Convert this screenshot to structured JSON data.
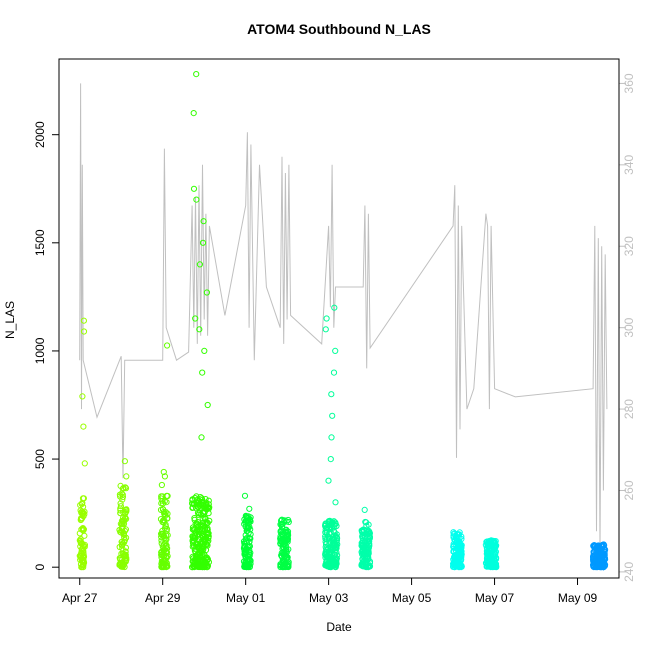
{
  "chart_data": {
    "type": "scatter",
    "title": "ATOM4 Southbound N_LAS",
    "xlabel": "Date",
    "ylabel": "N_LAS",
    "x_range": [
      "2015-04-26T12:00",
      "2015-05-10T00:00"
    ],
    "ylim": [
      -50,
      2350
    ],
    "y2lim": [
      238.5,
      366
    ],
    "x_ticks": [
      "Apr 27",
      "Apr 29",
      "May 01",
      "May 03",
      "May 05",
      "May 07",
      "May 09"
    ],
    "x_tick_dates": [
      "2015-04-27",
      "2015-04-29",
      "2015-05-01",
      "2015-05-03",
      "2015-05-05",
      "2015-05-07",
      "2015-05-09"
    ],
    "y_ticks": [
      0,
      500,
      1000,
      1500,
      2000
    ],
    "y2_ticks": [
      240,
      260,
      280,
      300,
      320,
      340,
      360
    ],
    "grid": false,
    "point_clusters": [
      {
        "start": "2015-04-27T00:00",
        "end": "2015-04-27T03:00",
        "base_max": 320,
        "outliers": [
          480,
          650,
          790,
          1090,
          1140
        ],
        "color": "#99ff00"
      },
      {
        "start": "2015-04-27T23:00",
        "end": "2015-04-28T03:00",
        "base_max": 380,
        "outliers": [
          420,
          490
        ],
        "color": "#88ff00"
      },
      {
        "start": "2015-04-28T23:00",
        "end": "2015-04-29T03:00",
        "base_max": 350,
        "outliers": [
          380,
          420,
          440,
          1025
        ],
        "color": "#66ff00"
      },
      {
        "start": "2015-04-29T17:00",
        "end": "2015-04-30T03:00",
        "base_max": 330,
        "outliers": [
          600,
          750,
          900,
          1000,
          1100,
          1150,
          1270,
          1400,
          1500,
          1600,
          1700,
          1750,
          2100,
          2280
        ],
        "color": "#33ff00"
      },
      {
        "start": "2015-04-30T23:00",
        "end": "2015-05-01T03:00",
        "base_max": 250,
        "outliers": [
          270,
          330
        ],
        "color": "#00ff33"
      },
      {
        "start": "2015-05-01T20:00",
        "end": "2015-05-02T01:00",
        "base_max": 220,
        "outliers": [],
        "color": "#00ff44"
      },
      {
        "start": "2015-05-02T22:00",
        "end": "2015-05-03T05:00",
        "base_max": 220,
        "outliers": [
          300,
          400,
          500,
          600,
          700,
          800,
          900,
          1000,
          1100,
          1150,
          1200
        ],
        "color": "#00ff99"
      },
      {
        "start": "2015-05-03T19:00",
        "end": "2015-05-04T00:00",
        "base_max": 210,
        "outliers": [
          265
        ],
        "color": "#00ffaa"
      },
      {
        "start": "2015-05-06T00:00",
        "end": "2015-05-06T05:00",
        "base_max": 165,
        "outliers": [],
        "color": "#00ffee"
      },
      {
        "start": "2015-05-06T19:00",
        "end": "2015-05-07T01:00",
        "base_max": 125,
        "outliers": [],
        "color": "#00ffdd"
      },
      {
        "start": "2015-05-09T09:00",
        "end": "2015-05-09T16:00",
        "base_max": 105,
        "outliers": [],
        "color": "#0099ff"
      }
    ],
    "secondary_series": {
      "color": "#c0c0c0",
      "path": [
        [
          "2015-04-27T00:00",
          292
        ],
        [
          "2015-04-27T00:30",
          360
        ],
        [
          "2015-04-27T01:00",
          280
        ],
        [
          "2015-04-27T01:30",
          340
        ],
        [
          "2015-04-27T02:00",
          292
        ],
        [
          "2015-04-27T10:00",
          278
        ],
        [
          "2015-04-28T00:00",
          293
        ],
        [
          "2015-04-28T01:00",
          263
        ],
        [
          "2015-04-28T02:00",
          292
        ],
        [
          "2015-04-28T10:00",
          292
        ],
        [
          "2015-04-29T00:00",
          292
        ],
        [
          "2015-04-29T01:00",
          344
        ],
        [
          "2015-04-29T02:00",
          300
        ],
        [
          "2015-04-29T08:00",
          292
        ],
        [
          "2015-04-29T15:00",
          294
        ],
        [
          "2015-04-29T17:00",
          330
        ],
        [
          "2015-04-29T18:00",
          300
        ],
        [
          "2015-04-29T19:00",
          332
        ],
        [
          "2015-04-29T20:00",
          296
        ],
        [
          "2015-04-29T21:00",
          335
        ],
        [
          "2015-04-29T22:00",
          298
        ],
        [
          "2015-04-29T23:00",
          340
        ],
        [
          "2015-04-30T00:00",
          302
        ],
        [
          "2015-04-30T01:00",
          328
        ],
        [
          "2015-04-30T02:00",
          298
        ],
        [
          "2015-04-30T03:00",
          325
        ],
        [
          "2015-04-30T12:00",
          303
        ],
        [
          "2015-05-01T00:00",
          330
        ],
        [
          "2015-05-01T01:00",
          348
        ],
        [
          "2015-05-01T02:00",
          300
        ],
        [
          "2015-05-01T03:00",
          345
        ],
        [
          "2015-05-01T05:00",
          292
        ],
        [
          "2015-05-01T08:00",
          340
        ],
        [
          "2015-05-01T12:00",
          310
        ],
        [
          "2015-05-01T20:00",
          300
        ],
        [
          "2015-05-01T21:00",
          342
        ],
        [
          "2015-05-01T22:00",
          296
        ],
        [
          "2015-05-01T23:00",
          338
        ],
        [
          "2015-05-02T00:00",
          302
        ],
        [
          "2015-05-02T01:00",
          340
        ],
        [
          "2015-05-02T02:00",
          303
        ],
        [
          "2015-05-02T20:00",
          296
        ],
        [
          "2015-05-03T00:00",
          325
        ],
        [
          "2015-05-03T01:00",
          305
        ],
        [
          "2015-05-03T02:00",
          340
        ],
        [
          "2015-05-03T03:00",
          300
        ],
        [
          "2015-05-03T04:00",
          310
        ],
        [
          "2015-05-03T20:00",
          310
        ],
        [
          "2015-05-03T21:00",
          330
        ],
        [
          "2015-05-03T22:00",
          290
        ],
        [
          "2015-05-03T23:00",
          328
        ],
        [
          "2015-05-04T00:00",
          295
        ],
        [
          "2015-05-06T00:00",
          325
        ],
        [
          "2015-05-06T01:00",
          335
        ],
        [
          "2015-05-06T02:00",
          268
        ],
        [
          "2015-05-06T03:00",
          330
        ],
        [
          "2015-05-06T04:00",
          275
        ],
        [
          "2015-05-06T05:00",
          325
        ],
        [
          "2015-05-06T08:00",
          280
        ],
        [
          "2015-05-06T12:00",
          285
        ],
        [
          "2015-05-06T19:00",
          328
        ],
        [
          "2015-05-06T20:00",
          325
        ],
        [
          "2015-05-06T21:00",
          280
        ],
        [
          "2015-05-06T22:00",
          325
        ],
        [
          "2015-05-07T00:00",
          285
        ],
        [
          "2015-05-07T12:00",
          283
        ],
        [
          "2015-05-09T09:00",
          285
        ],
        [
          "2015-05-09T10:00",
          325
        ],
        [
          "2015-05-09T11:00",
          250
        ],
        [
          "2015-05-09T12:00",
          322
        ],
        [
          "2015-05-09T13:00",
          245
        ],
        [
          "2015-05-09T14:00",
          320
        ],
        [
          "2015-05-09T15:00",
          260
        ],
        [
          "2015-05-09T16:00",
          318
        ],
        [
          "2015-05-09T17:00",
          280
        ]
      ]
    }
  }
}
